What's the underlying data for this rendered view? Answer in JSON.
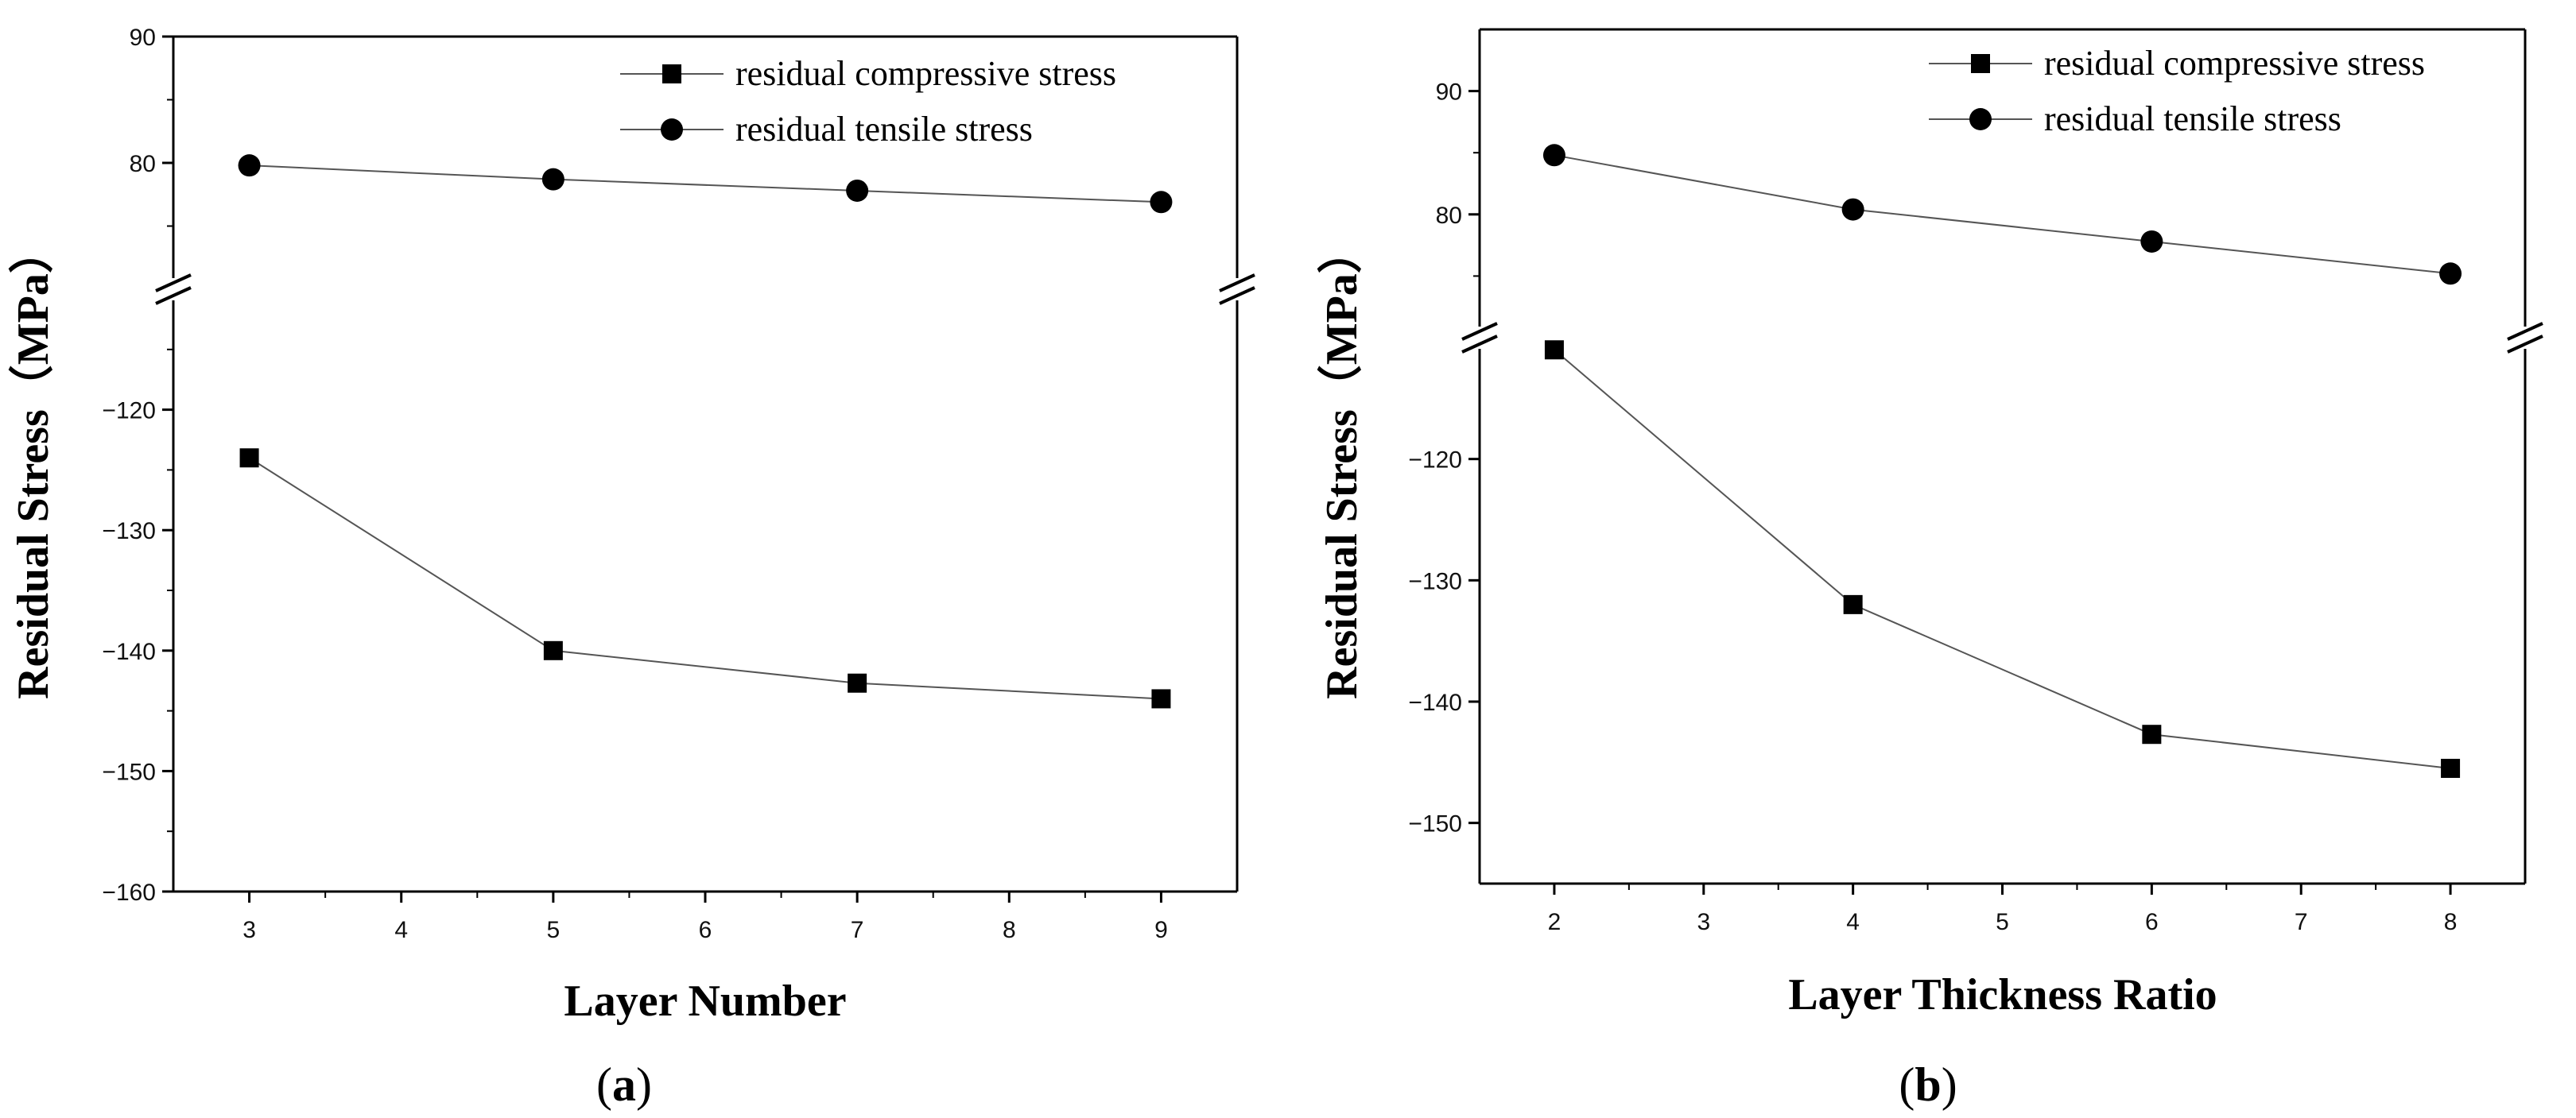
{
  "chart_data": [
    {
      "type": "line",
      "panel_label": "a",
      "title": "",
      "xlabel": "Layer Number",
      "ylabel": "Residual Stress（MPa）",
      "x": [
        3,
        5,
        7,
        9
      ],
      "xlim": [
        2.5,
        9.5
      ],
      "xticks": [
        3,
        4,
        5,
        6,
        7,
        8,
        9
      ],
      "broken_y_axis": true,
      "y_upper_range": [
        70,
        90
      ],
      "y_upper_ticks": [
        80,
        90
      ],
      "y_lower_range": [
        -160,
        -110
      ],
      "y_lower_ticks": [
        -160,
        -150,
        -140,
        -130,
        -120
      ],
      "series": [
        {
          "name": "residual compressive stress",
          "marker": "square",
          "values": [
            -124,
            -140,
            -142.7,
            -144
          ]
        },
        {
          "name": "residual tensile stress",
          "marker": "circle",
          "values": [
            79.8,
            78.7,
            77.8,
            76.9
          ]
        }
      ],
      "legend_position": "top-right"
    },
    {
      "type": "line",
      "panel_label": "b",
      "title": "",
      "xlabel": "Layer Thickness Ratio",
      "ylabel": "Residual Stress（MPa）",
      "x": [
        2,
        4,
        6,
        8
      ],
      "xlim": [
        1.5,
        8.5
      ],
      "xticks": [
        2,
        3,
        4,
        5,
        6,
        7,
        8
      ],
      "broken_y_axis": true,
      "y_upper_range": [
        70,
        95
      ],
      "y_upper_ticks": [
        80,
        90
      ],
      "y_lower_range": [
        -155,
        -110
      ],
      "y_lower_ticks": [
        -150,
        -140,
        -130,
        -120
      ],
      "series": [
        {
          "name": "residual compressive stress",
          "marker": "square",
          "values": [
            -111,
            -132,
            -142.7,
            -145.5
          ]
        },
        {
          "name": "residual tensile stress",
          "marker": "circle",
          "values": [
            84.8,
            80.4,
            77.8,
            75.2
          ]
        }
      ],
      "legend_position": "top-right"
    }
  ]
}
